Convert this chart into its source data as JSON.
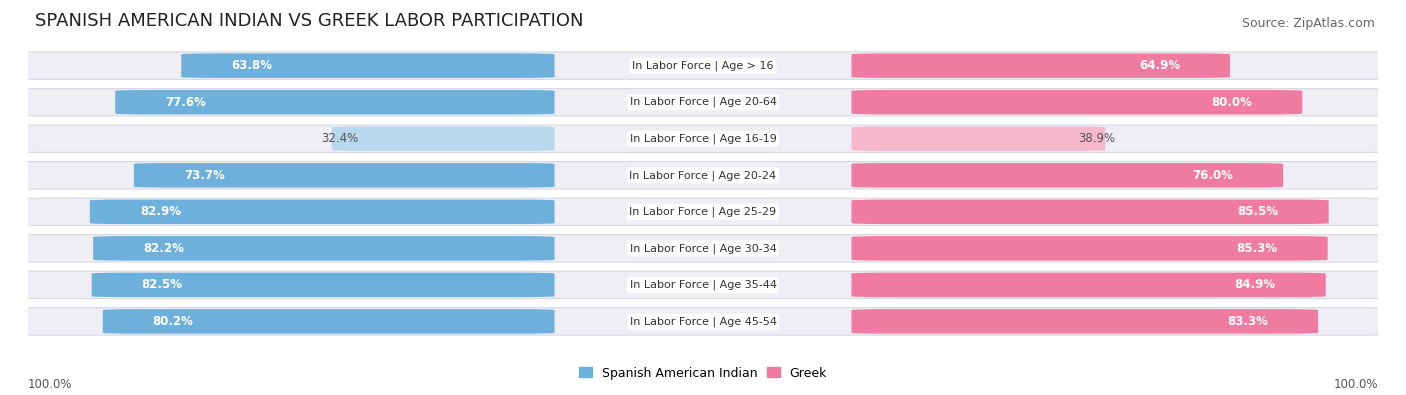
{
  "title": "SPANISH AMERICAN INDIAN VS GREEK LABOR PARTICIPATION",
  "source": "Source: ZipAtlas.com",
  "categories": [
    "In Labor Force | Age > 16",
    "In Labor Force | Age 20-64",
    "In Labor Force | Age 16-19",
    "In Labor Force | Age 20-24",
    "In Labor Force | Age 25-29",
    "In Labor Force | Age 30-34",
    "In Labor Force | Age 35-44",
    "In Labor Force | Age 45-54"
  ],
  "spanish_values": [
    63.8,
    77.6,
    32.4,
    73.7,
    82.9,
    82.2,
    82.5,
    80.2
  ],
  "greek_values": [
    64.9,
    80.0,
    38.9,
    76.0,
    85.5,
    85.3,
    84.9,
    83.3
  ],
  "spanish_color": "#6EB0DC",
  "greek_color": "#F07BA0",
  "spanish_color_light": "#B8D8EE",
  "greek_color_light": "#F7B8CC",
  "pill_bg": "#E8E8EE",
  "max_val": 100.0,
  "x_left_label": "100.0%",
  "x_right_label": "100.0%",
  "legend_spanish": "Spanish American Indian",
  "legend_greek": "Greek",
  "title_fontsize": 13,
  "source_fontsize": 9,
  "bar_label_fontsize": 8.5,
  "category_fontsize": 8.0,
  "legend_fontsize": 9,
  "axis_label_fontsize": 8.5
}
